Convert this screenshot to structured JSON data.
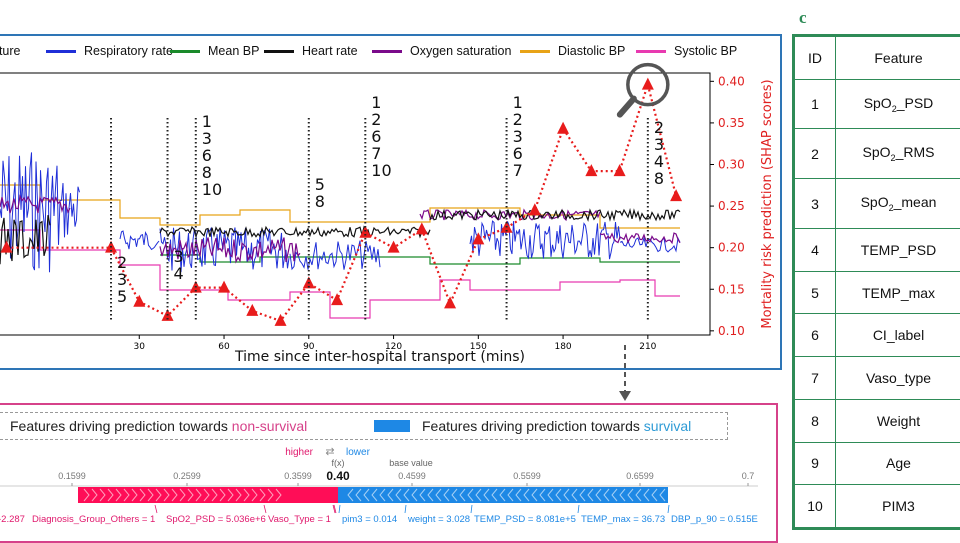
{
  "legend": {
    "items": [
      {
        "label": "ature",
        "color": "#4a90e2"
      },
      {
        "label": "Respiratory rate",
        "color": "#1f2fd8"
      },
      {
        "label": "Mean BP",
        "color": "#1a8a2a"
      },
      {
        "label": "Heart rate",
        "color": "#111111"
      },
      {
        "label": "Oxygen saturation",
        "color": "#7a0a8a"
      },
      {
        "label": "Diastolic BP",
        "color": "#e8a317"
      },
      {
        "label": "Systolic BP",
        "color": "#e83ab0"
      }
    ]
  },
  "chart_data": {
    "type": "line",
    "xlabel": "Time since inter-hospital transport (mins)",
    "ylabel": "Mortality risk prediction (SHAP scores)",
    "xlim": [
      -20,
      232
    ],
    "ylim": [
      0.095,
      0.41
    ],
    "x_ticks": [
      "30",
      "60",
      "90",
      "120",
      "150",
      "180",
      "210"
    ],
    "y_ticks": [
      "0.10",
      "0.15",
      "0.20",
      "0.25",
      "0.30",
      "0.35",
      "0.40"
    ],
    "risk_points": {
      "color": "#e81c1c",
      "x": [
        -17,
        20,
        30,
        40,
        50,
        60,
        70,
        80,
        90,
        100,
        110,
        120,
        130,
        140,
        150,
        160,
        170,
        180,
        190,
        200,
        210,
        220
      ],
      "y": [
        0.2,
        0.2,
        0.135,
        0.118,
        0.152,
        0.152,
        0.124,
        0.112,
        0.157,
        0.137,
        0.218,
        0.2,
        0.222,
        0.133,
        0.21,
        0.224,
        0.245,
        0.343,
        0.292,
        0.292,
        0.396,
        0.262
      ]
    },
    "annotations": [
      {
        "x": 20,
        "text": [
          "2",
          "3",
          "5"
        ]
      },
      {
        "x": 40,
        "text": [
          "3",
          "4"
        ]
      },
      {
        "x": 50,
        "text": [
          "1",
          "3",
          "6",
          "8",
          "10"
        ]
      },
      {
        "x": 90,
        "text": [
          "5",
          "8"
        ]
      },
      {
        "x": 110,
        "text": [
          "1",
          "2",
          "6",
          "7",
          "10"
        ]
      },
      {
        "x": 160,
        "text": [
          "1",
          "2",
          "3",
          "6",
          "7"
        ]
      },
      {
        "x": 210,
        "text": [
          "2",
          "3",
          "4",
          "8"
        ]
      }
    ]
  },
  "force_plot": {
    "legend_left_prefix": "Features driving prediction towards ",
    "legend_left_highlight": "non-survival",
    "legend_right_prefix": "Features driving prediction towards ",
    "legend_right_highlight": "survival",
    "higher_label": "higher",
    "lower_label": "lower",
    "arrows_glyph": "⇄",
    "fx_label": "f(x)",
    "fx_value": "0.40",
    "base_label": "base value",
    "axis_ticks": [
      "0.1599",
      "0.2599",
      "0.3599",
      "0.4599",
      "0.5599",
      "0.6599",
      "0.7"
    ],
    "positive_features": [
      "-2.287",
      "Diagnosis_Group_Others = 1",
      "SpO2_PSD = 5.036e+6",
      "Vaso_Type = 1"
    ],
    "negative_features": [
      "pim3 = 0.014",
      "weight = 3.028",
      "TEMP_PSD = 8.081e+5",
      "TEMP_max = 36.73",
      "DBP_p_90 = 0.515E"
    ],
    "pink": "#ff0d57",
    "blue": "#1e88e5"
  },
  "panel_label": "c",
  "feature_table": {
    "header_id": "ID",
    "header_feature": "Feature",
    "rows": [
      {
        "id": "1",
        "feature": "SpO",
        "sub": "2",
        "suffix": "_PSD"
      },
      {
        "id": "2",
        "feature": "SpO",
        "sub": "2",
        "suffix": "_RMS"
      },
      {
        "id": "3",
        "feature": "SpO",
        "sub": "2",
        "suffix": "_mean"
      },
      {
        "id": "4",
        "feature": "TEMP_PSD",
        "sub": "",
        "suffix": ""
      },
      {
        "id": "5",
        "feature": "TEMP_max",
        "sub": "",
        "suffix": ""
      },
      {
        "id": "6",
        "feature": "CI_label",
        "sub": "",
        "suffix": ""
      },
      {
        "id": "7",
        "feature": "Vaso_type",
        "sub": "",
        "suffix": ""
      },
      {
        "id": "8",
        "feature": "Weight",
        "sub": "",
        "suffix": ""
      },
      {
        "id": "9",
        "feature": "Age",
        "sub": "",
        "suffix": ""
      },
      {
        "id": "10",
        "feature": "PIM3",
        "sub": "",
        "suffix": ""
      }
    ]
  }
}
